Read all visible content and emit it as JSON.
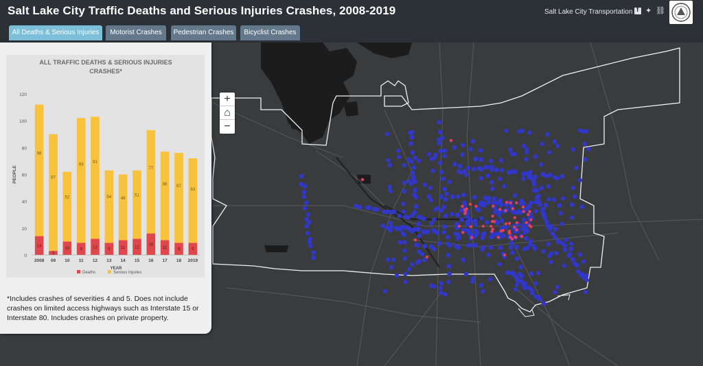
{
  "header": {
    "title": "Salt Lake City Traffic Deaths and Serious Injuries Crashes, 2008-2019",
    "org": "Salt Lake City Transportation"
  },
  "tabs": [
    {
      "label": "All Deaths & Serious Injuries",
      "active": true
    },
    {
      "label": "Motorist Crashes",
      "active": false
    },
    {
      "label": "Pedestrian Crashes",
      "active": false
    },
    {
      "label": "Bicyclist Crashes",
      "active": false
    }
  ],
  "zoom": {
    "in": "+",
    "home": "⌂",
    "out": "−"
  },
  "icons": [
    "facebook-icon",
    "twitter-icon",
    "link-icon",
    "city-seal-logo",
    "home-icon"
  ],
  "colors": {
    "deaths": "#e0474c",
    "serious": "#f9c23c",
    "crash_dot": "#3137c9",
    "hotspot": "#e0405a",
    "tab_active": "#7dbfd9",
    "tab": "#63788a"
  },
  "chart_data": {
    "type": "bar",
    "title_lines": [
      "ALL TRAFFIC DEATHS & SERIOUS INJURIES",
      "CRASHES*"
    ],
    "xlabel": "YEAR",
    "ylabel": "PEOPLE",
    "ylim": [
      0,
      120
    ],
    "yticks": [
      0,
      20,
      40,
      60,
      80,
      100,
      120
    ],
    "stacked": true,
    "categories": [
      "2008",
      "09",
      "10",
      "11",
      "12",
      "13",
      "14",
      "15",
      "16",
      "17",
      "18",
      "2019"
    ],
    "series": [
      {
        "name": "Deaths",
        "values": [
          14,
          3,
          10,
          9,
          12,
          9,
          11,
          12,
          16,
          11,
          9,
          9
        ]
      },
      {
        "name": "Serious Injuries",
        "values": [
          98,
          87,
          52,
          93,
          91,
          54,
          49,
          51,
          77,
          66,
          67,
          63
        ]
      }
    ],
    "legend_position": "bottom",
    "grid": false
  },
  "note": "*Includes crashes of severities 4 and 5. Does not include crashes on limited access highways such as Interstate 15 or Interstate 80. Includes crashes on private property."
}
